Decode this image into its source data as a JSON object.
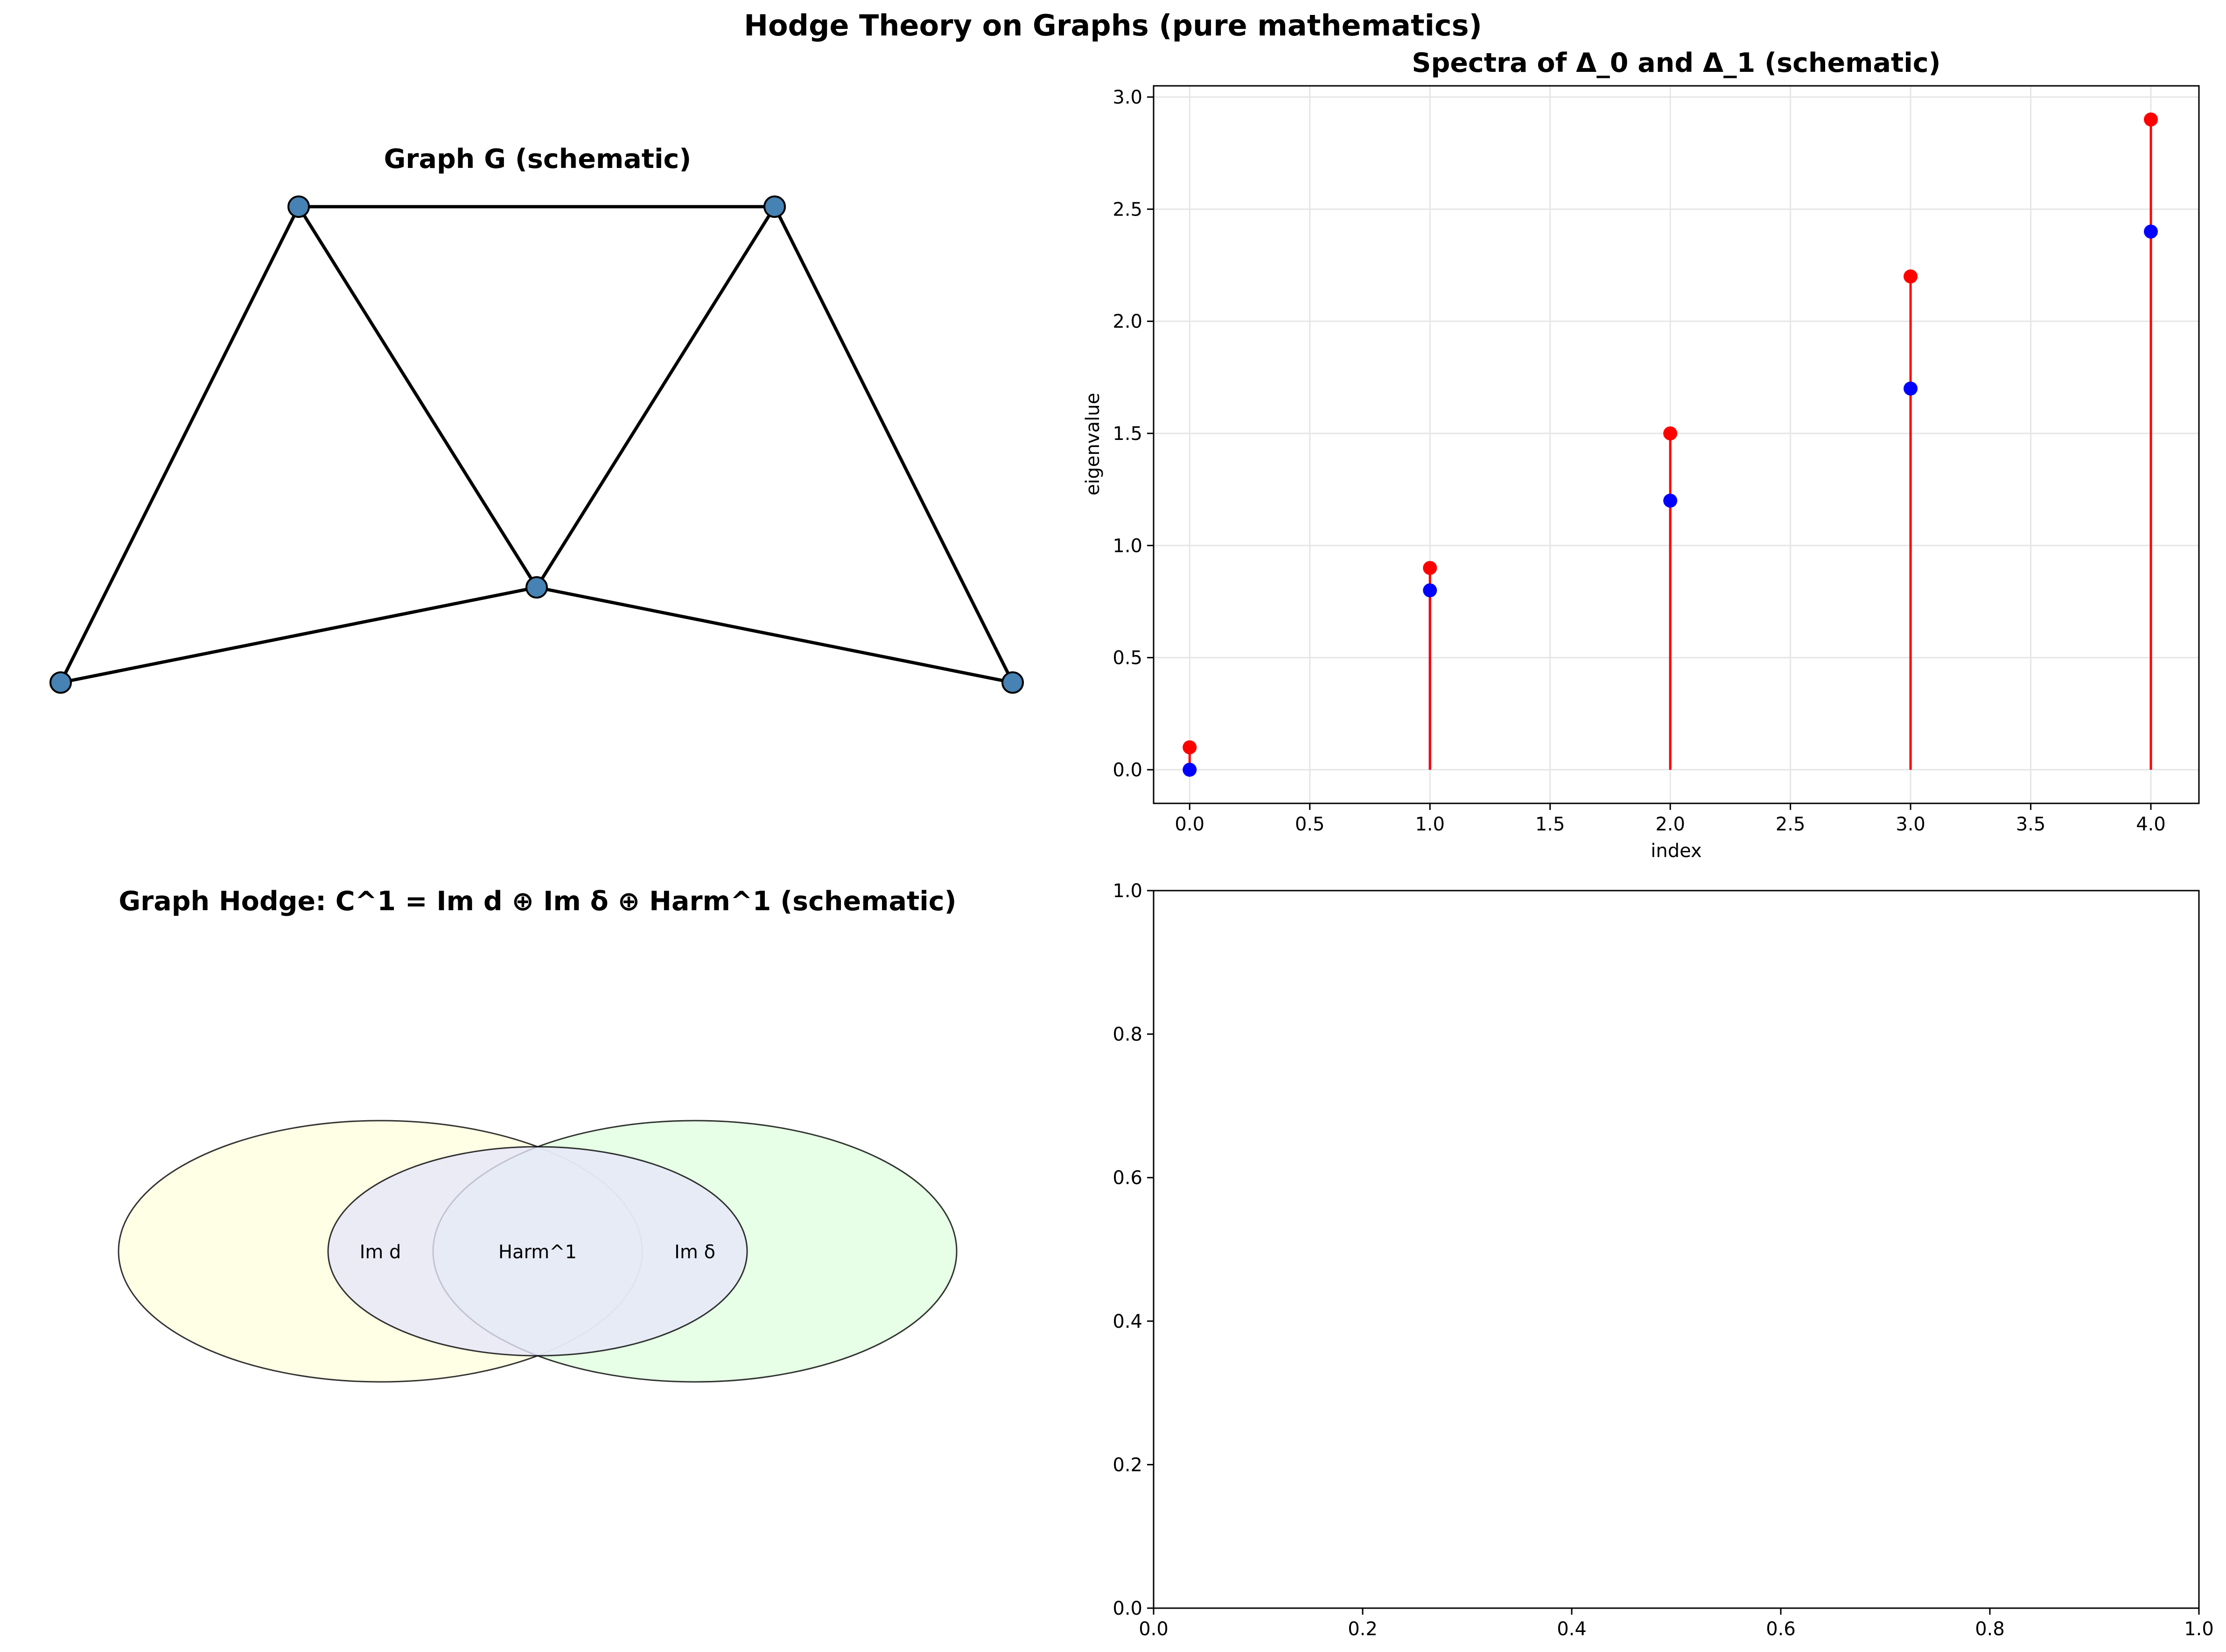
{
  "figure": {
    "suptitle": "Hodge Theory on Graphs (pure mathematics)"
  },
  "colors": {
    "node_fill": "#4682b4",
    "edge": "#000000",
    "delta0": "#0000ff",
    "delta1": "#ff0000",
    "venn_left": "#ffffe0",
    "venn_right": "#e0ffe0",
    "venn_middle": "#e6e6fa",
    "grid": "#e6e6e6"
  },
  "chart_data": [
    {
      "type": "graph",
      "title": "Graph G (schematic)",
      "nodes": [
        {
          "id": "v0",
          "x": 0,
          "y": 0
        },
        {
          "id": "v1",
          "x": 1,
          "y": 2
        },
        {
          "id": "v2",
          "x": 2,
          "y": 0.4
        },
        {
          "id": "v3",
          "x": 3,
          "y": 2
        },
        {
          "id": "v4",
          "x": 4,
          "y": 0
        }
      ],
      "edges": [
        [
          "v0",
          "v1"
        ],
        [
          "v1",
          "v2"
        ],
        [
          "v0",
          "v2"
        ],
        [
          "v1",
          "v3"
        ],
        [
          "v2",
          "v3"
        ],
        [
          "v3",
          "v4"
        ],
        [
          "v2",
          "v4"
        ]
      ]
    },
    {
      "type": "stem",
      "title": "Spectra of Δ_0 and Δ_1 (schematic)",
      "xlabel": "index",
      "ylabel": "eigenvalue",
      "xlim": [
        -0.15,
        4.2
      ],
      "ylim": [
        -0.15,
        3.05
      ],
      "grid": true,
      "x_ticks": [
        0.0,
        0.5,
        1.0,
        1.5,
        2.0,
        2.5,
        3.0,
        3.5,
        4.0
      ],
      "y_ticks": [
        0.0,
        0.5,
        1.0,
        1.5,
        2.0,
        2.5,
        3.0
      ],
      "x": [
        0,
        1,
        2,
        3,
        4
      ],
      "series": [
        {
          "values": [
            0.0,
            0.8,
            1.2,
            1.7,
            2.4
          ],
          "color": "#0000ff"
        },
        {
          "values": [
            0.1,
            0.9,
            1.5,
            2.2,
            2.9
          ],
          "color": "#ff0000"
        }
      ]
    },
    {
      "type": "venn",
      "title": "Graph Hodge: C^1 = Im d ⊕ Im δ ⊕ Harm^1 (schematic)",
      "labels": [
        "Im d",
        "Harm^1",
        "Im δ"
      ]
    },
    {
      "type": "empty",
      "xlim": [
        0,
        1
      ],
      "ylim": [
        0,
        1
      ],
      "x_ticks": [
        0.0,
        0.2,
        0.4,
        0.6,
        0.8,
        1.0
      ],
      "y_ticks": [
        0.0,
        0.2,
        0.4,
        0.6,
        0.8,
        1.0
      ]
    }
  ]
}
